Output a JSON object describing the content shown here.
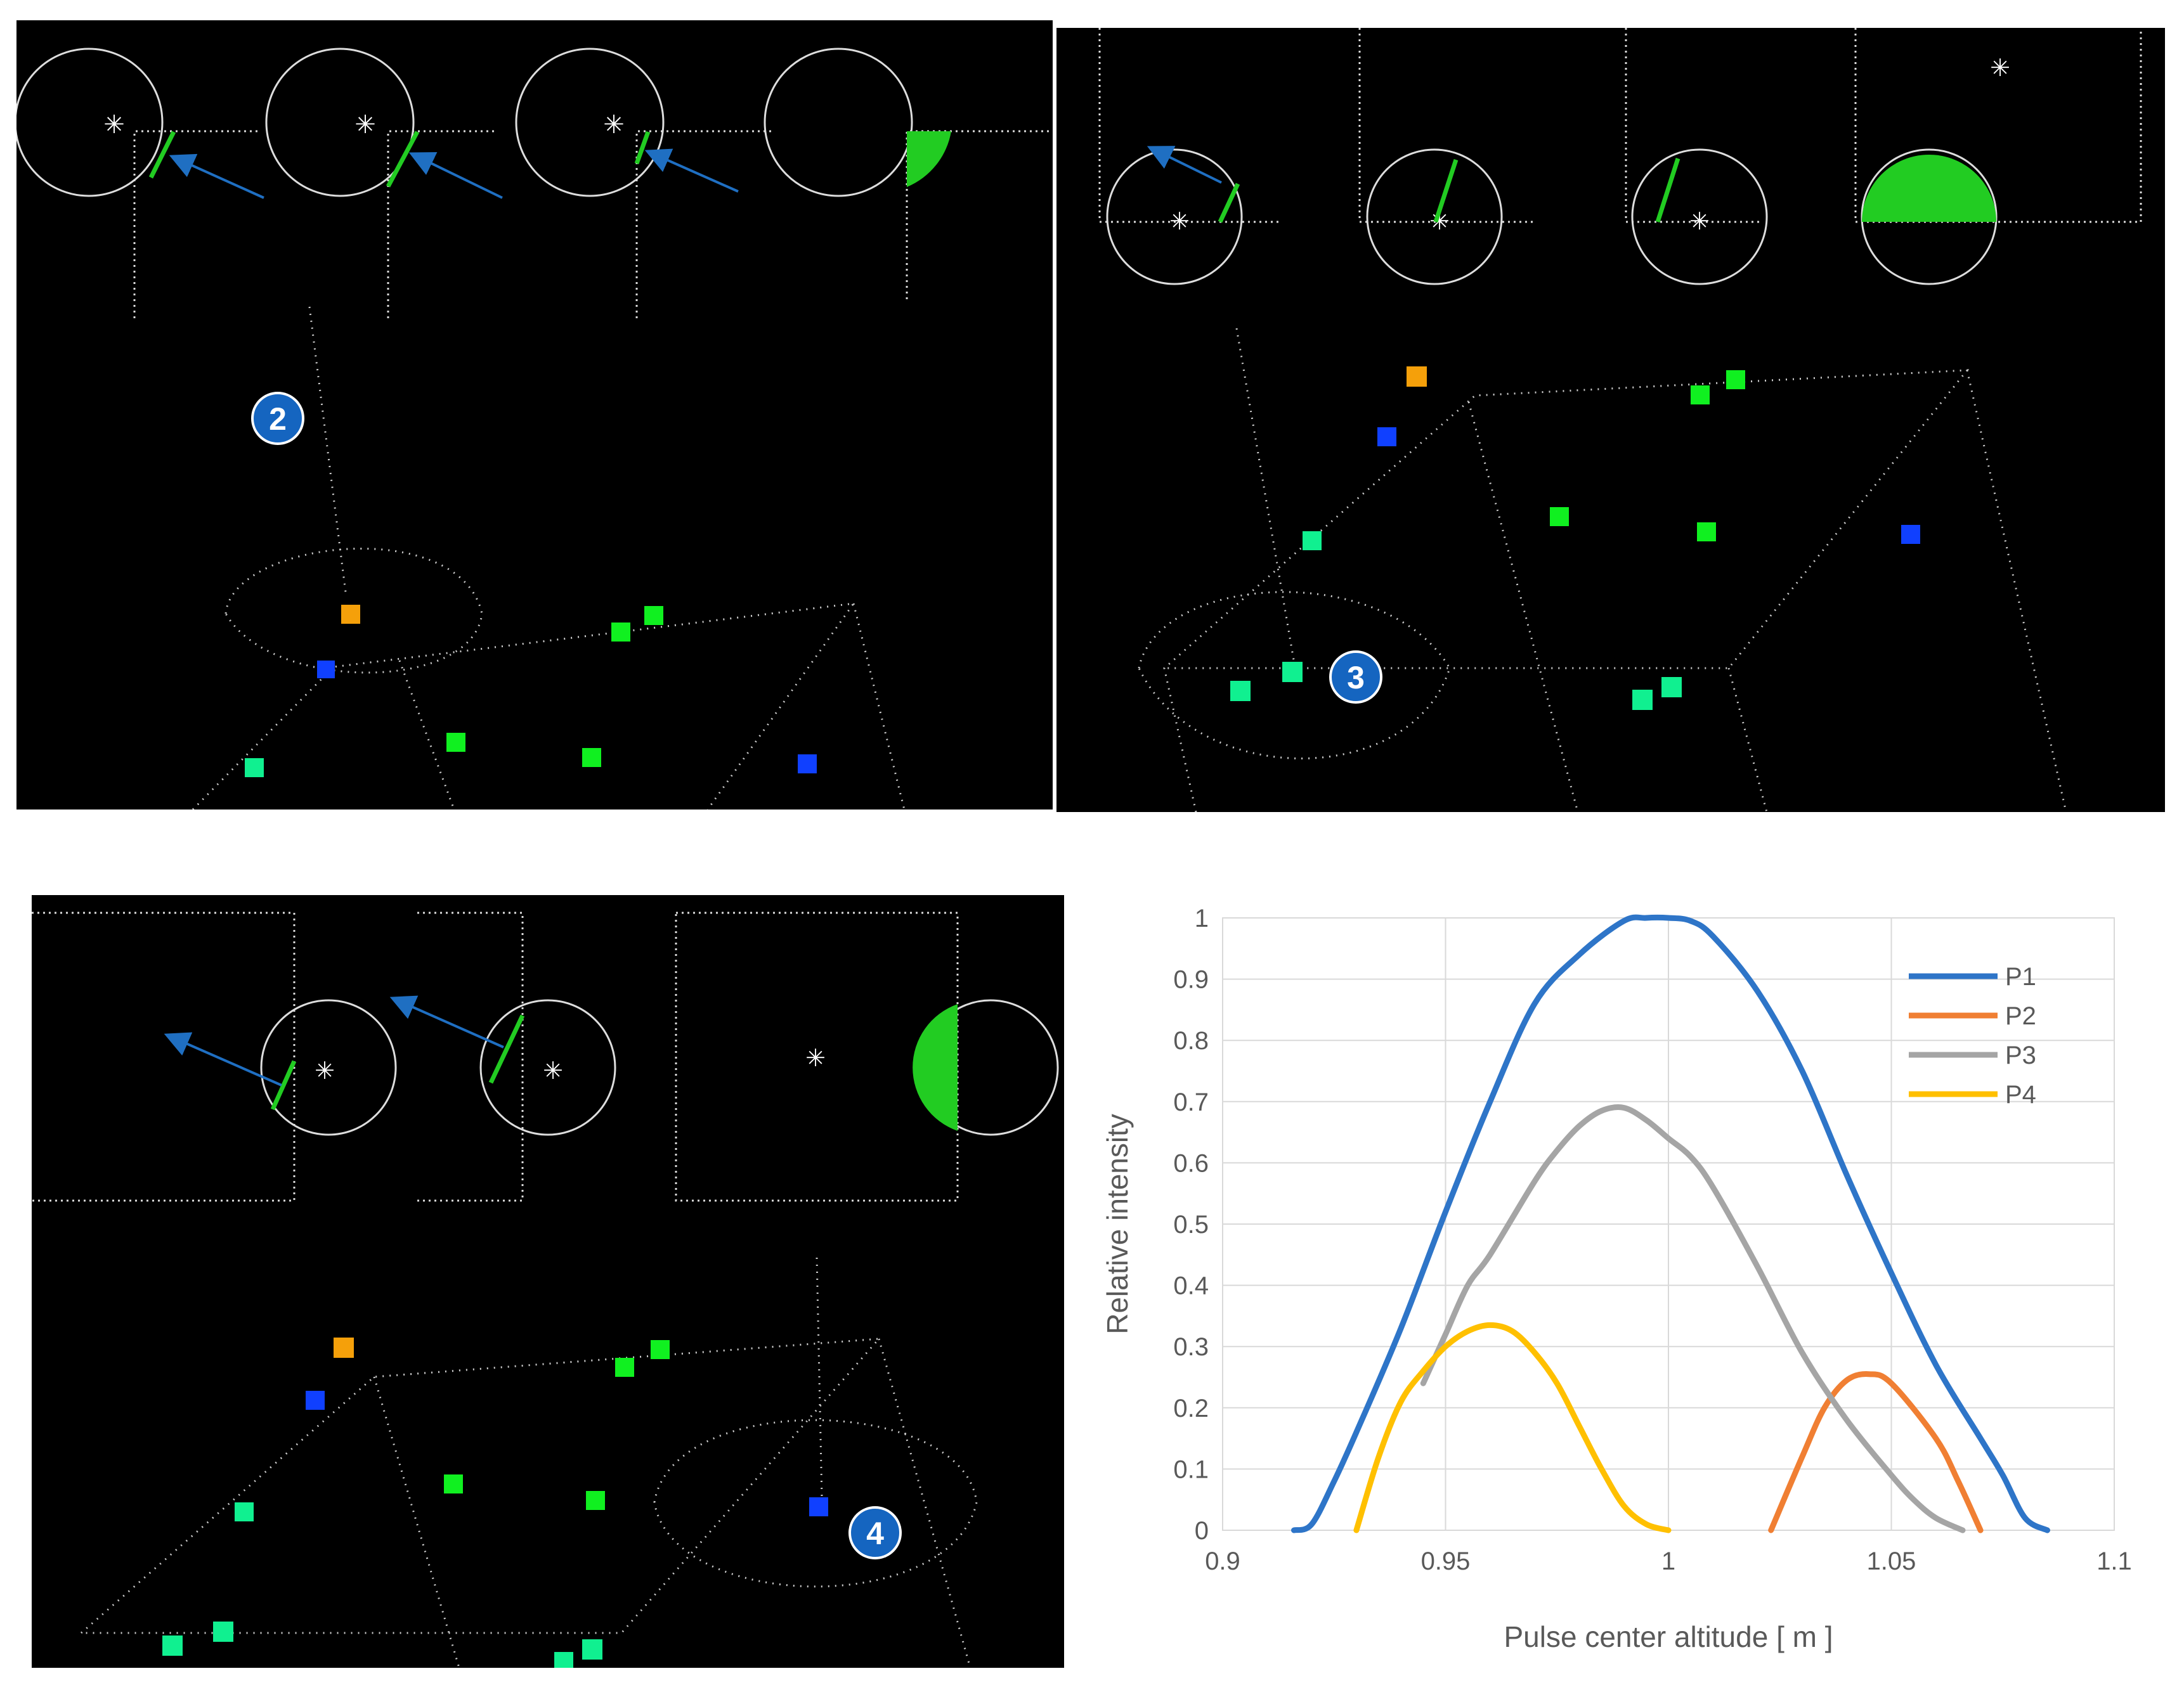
{
  "badges": {
    "step2": "2",
    "step3": "3",
    "step4": "4"
  },
  "colors": {
    "orange_marker": "#f5a00a",
    "blue_marker": "#1040ff",
    "green_marker": "#10f020",
    "teal_marker": "#10f090",
    "beam_green": "#22cc22",
    "arrow_blue": "#1f6fc2",
    "badge_blue": "#1565c0"
  },
  "chart_data": {
    "type": "line",
    "title": "",
    "xlabel": "Pulse center altitude [ m ]",
    "ylabel": "Relative intensity",
    "xlim": [
      0.9,
      1.1
    ],
    "ylim": [
      0,
      1
    ],
    "xticks": [
      "0.9",
      "0.95",
      "1",
      "1.05",
      "1.1"
    ],
    "yticks": [
      "0",
      "0.1",
      "0.2",
      "0.3",
      "0.4",
      "0.5",
      "0.6",
      "0.7",
      "0.8",
      "0.9",
      "1"
    ],
    "grid": true,
    "legend_position": "top-right",
    "series": [
      {
        "name": "P1",
        "color": "#2e75c8",
        "x": [
          0.916,
          0.92,
          0.925,
          0.93,
          0.94,
          0.95,
          0.96,
          0.97,
          0.98,
          0.99,
          0.995,
          1.0,
          1.005,
          1.01,
          1.02,
          1.03,
          1.04,
          1.05,
          1.06,
          1.07,
          1.075,
          1.08,
          1.085
        ],
        "y": [
          0,
          0.01,
          0.08,
          0.16,
          0.33,
          0.52,
          0.7,
          0.86,
          0.94,
          0.995,
          1.0,
          1.0,
          0.995,
          0.97,
          0.88,
          0.75,
          0.58,
          0.42,
          0.27,
          0.15,
          0.09,
          0.02,
          0
        ]
      },
      {
        "name": "P2",
        "color": "#f07f33",
        "x": [
          1.023,
          1.03,
          1.035,
          1.04,
          1.045,
          1.05,
          1.06,
          1.065,
          1.07
        ],
        "y": [
          0,
          0.12,
          0.2,
          0.245,
          0.255,
          0.24,
          0.15,
          0.08,
          0
        ]
      },
      {
        "name": "P3",
        "color": "#a5a5a5",
        "x": [
          0.945,
          0.95,
          0.955,
          0.96,
          0.97,
          0.975,
          0.98,
          0.985,
          0.99,
          0.995,
          1.0,
          1.005,
          1.01,
          1.02,
          1.03,
          1.04,
          1.05,
          1.055,
          1.06,
          1.066
        ],
        "y": [
          0.24,
          0.32,
          0.4,
          0.45,
          0.57,
          0.62,
          0.66,
          0.685,
          0.69,
          0.67,
          0.64,
          0.61,
          0.56,
          0.43,
          0.29,
          0.18,
          0.09,
          0.05,
          0.02,
          0
        ]
      },
      {
        "name": "P4",
        "color": "#ffc000",
        "x": [
          0.93,
          0.935,
          0.94,
          0.945,
          0.95,
          0.955,
          0.96,
          0.965,
          0.97,
          0.975,
          0.98,
          0.985,
          0.99,
          0.995,
          1.0
        ],
        "y": [
          0,
          0.12,
          0.21,
          0.26,
          0.3,
          0.325,
          0.335,
          0.325,
          0.29,
          0.24,
          0.17,
          0.1,
          0.04,
          0.01,
          0
        ]
      }
    ]
  }
}
